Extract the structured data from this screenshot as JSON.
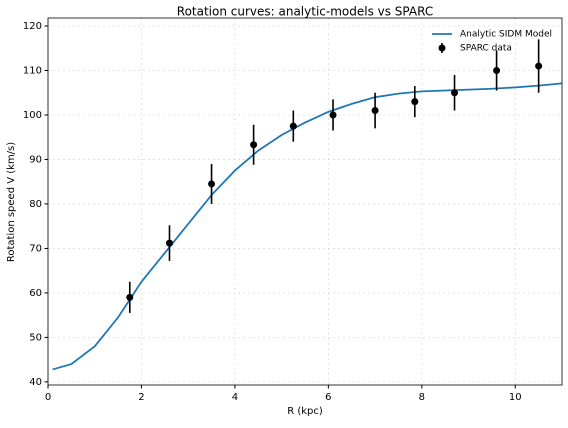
{
  "chart_data": {
    "type": "line",
    "title": "Rotation curves: analytic-models vs SPARC",
    "x_label": "R (kpc)",
    "y_label": "Rotation speed V (km/s)",
    "xlim": [
      0,
      11
    ],
    "ylim": [
      39.3,
      121.8
    ],
    "xticks": [
      0,
      2,
      4,
      6,
      8,
      10
    ],
    "yticks": [
      40,
      50,
      60,
      70,
      80,
      90,
      100,
      110,
      120
    ],
    "grid": true,
    "legend": "upper right",
    "series": [
      {
        "name": "Analytic SIDM Model",
        "type": "line",
        "color": "#1f77b4",
        "x": [
          0.1,
          0.5,
          1.0,
          1.5,
          2.0,
          2.5,
          3.0,
          3.5,
          4.0,
          4.5,
          5.0,
          5.5,
          6.0,
          6.5,
          7.0,
          7.5,
          8.0,
          8.5,
          9.0,
          9.5,
          10.0,
          10.5,
          11.0
        ],
        "values": [
          42.8,
          44,
          48,
          54.5,
          62.5,
          69,
          75.5,
          82,
          87.5,
          92,
          95.5,
          98.3,
          100.7,
          102.5,
          104,
          104.8,
          105.3,
          105.5,
          105.7,
          105.9,
          106.2,
          106.6,
          107.1
        ]
      },
      {
        "name": "SPARC data",
        "type": "scatter",
        "color": "#000000",
        "x": [
          1.75,
          2.6,
          3.5,
          4.4,
          5.25,
          6.1,
          7.0,
          7.85,
          8.7,
          9.6,
          10.5
        ],
        "values": [
          59,
          71.2,
          84.5,
          93.3,
          97.5,
          100,
          101,
          103,
          105,
          110,
          111
        ],
        "errors": [
          3.5,
          4,
          4.5,
          4.5,
          3.5,
          3.5,
          4,
          3.5,
          4,
          4.5,
          6
        ]
      }
    ]
  }
}
